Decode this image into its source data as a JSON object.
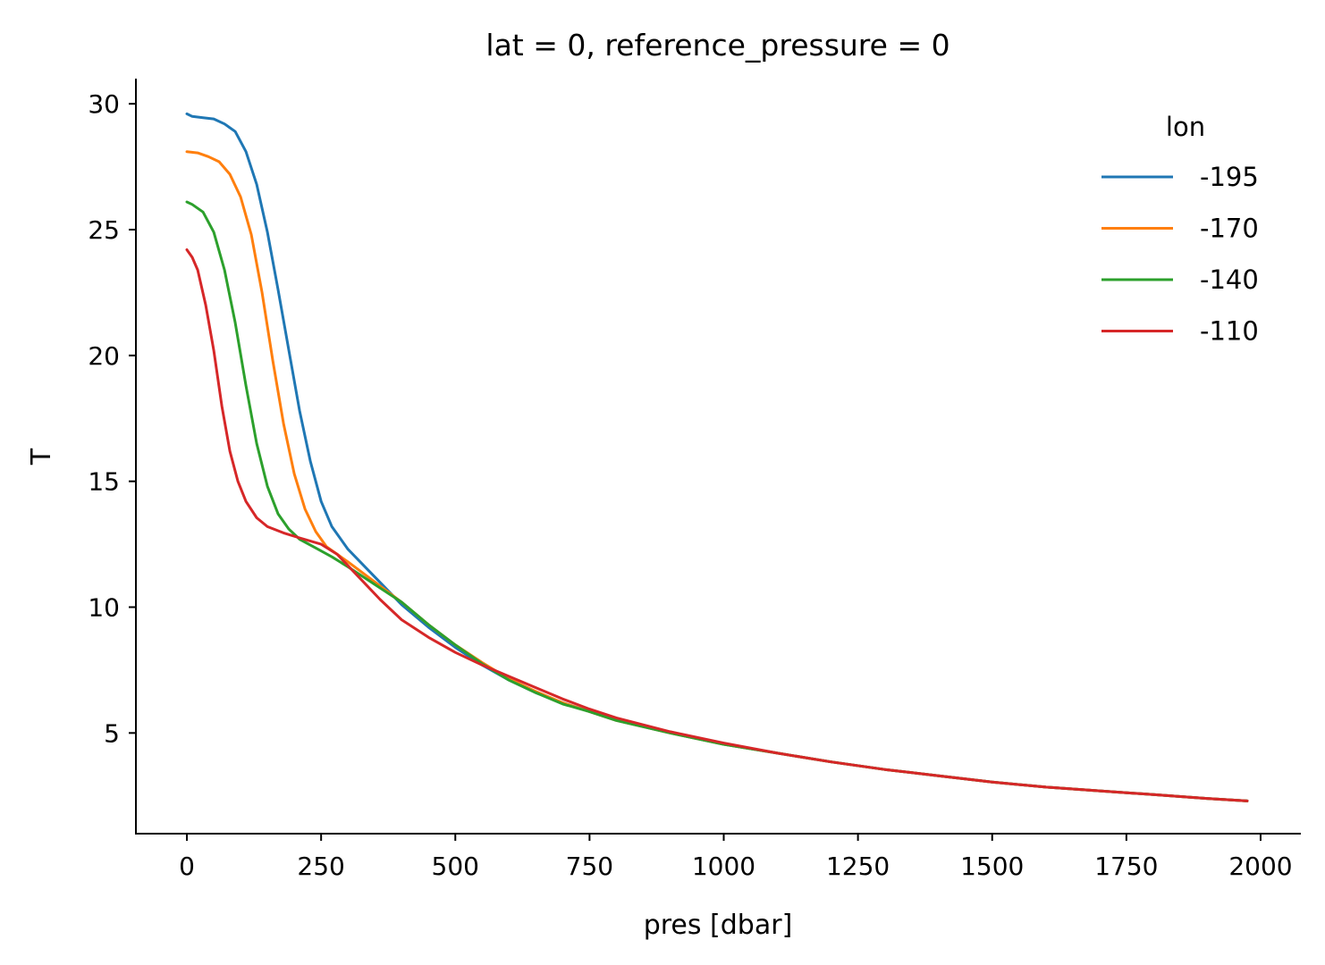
{
  "chart_data": {
    "type": "line",
    "title": "lat = 0, reference_pressure = 0",
    "xlabel": "pres [dbar]",
    "ylabel": "T",
    "xlim": [
      -95,
      2075
    ],
    "ylim": [
      1.0,
      31.0
    ],
    "xticks": [
      0,
      250,
      500,
      750,
      1000,
      1250,
      1500,
      1750,
      2000
    ],
    "yticks": [
      5,
      10,
      15,
      20,
      25,
      30
    ],
    "grid": false,
    "legend": {
      "title": "lon",
      "placement": "top-right"
    },
    "series": [
      {
        "name": "-195",
        "color": "#1f77b4",
        "points": [
          [
            0,
            29.6
          ],
          [
            10,
            29.5
          ],
          [
            30,
            29.45
          ],
          [
            50,
            29.4
          ],
          [
            70,
            29.2
          ],
          [
            90,
            28.9
          ],
          [
            110,
            28.1
          ],
          [
            130,
            26.8
          ],
          [
            150,
            24.9
          ],
          [
            170,
            22.6
          ],
          [
            190,
            20.2
          ],
          [
            210,
            17.8
          ],
          [
            230,
            15.8
          ],
          [
            250,
            14.2
          ],
          [
            270,
            13.2
          ],
          [
            300,
            12.3
          ],
          [
            350,
            11.2
          ],
          [
            400,
            10.1
          ],
          [
            450,
            9.2
          ],
          [
            500,
            8.4
          ],
          [
            550,
            7.7
          ],
          [
            600,
            7.1
          ],
          [
            650,
            6.6
          ],
          [
            700,
            6.2
          ],
          [
            750,
            5.85
          ],
          [
            800,
            5.5
          ],
          [
            900,
            5.0
          ],
          [
            1000,
            4.55
          ],
          [
            1100,
            4.2
          ],
          [
            1200,
            3.85
          ],
          [
            1300,
            3.55
          ],
          [
            1400,
            3.3
          ],
          [
            1500,
            3.05
          ],
          [
            1600,
            2.85
          ],
          [
            1700,
            2.7
          ],
          [
            1800,
            2.55
          ],
          [
            1900,
            2.4
          ],
          [
            1975,
            2.3
          ]
        ]
      },
      {
        "name": "-170",
        "color": "#ff7f0e",
        "points": [
          [
            0,
            28.1
          ],
          [
            20,
            28.05
          ],
          [
            40,
            27.9
          ],
          [
            60,
            27.7
          ],
          [
            80,
            27.2
          ],
          [
            100,
            26.3
          ],
          [
            120,
            24.8
          ],
          [
            140,
            22.5
          ],
          [
            160,
            19.8
          ],
          [
            180,
            17.3
          ],
          [
            200,
            15.3
          ],
          [
            220,
            13.9
          ],
          [
            240,
            13.0
          ],
          [
            260,
            12.4
          ],
          [
            300,
            11.8
          ],
          [
            350,
            11.0
          ],
          [
            400,
            10.2
          ],
          [
            450,
            9.3
          ],
          [
            500,
            8.5
          ],
          [
            550,
            7.8
          ],
          [
            600,
            7.15
          ],
          [
            650,
            6.65
          ],
          [
            700,
            6.2
          ],
          [
            750,
            5.85
          ],
          [
            800,
            5.5
          ],
          [
            900,
            5.0
          ],
          [
            1000,
            4.55
          ],
          [
            1100,
            4.2
          ],
          [
            1200,
            3.85
          ],
          [
            1300,
            3.55
          ],
          [
            1400,
            3.3
          ],
          [
            1500,
            3.05
          ],
          [
            1600,
            2.85
          ],
          [
            1700,
            2.7
          ],
          [
            1800,
            2.55
          ],
          [
            1900,
            2.4
          ],
          [
            1975,
            2.3
          ]
        ]
      },
      {
        "name": "-140",
        "color": "#2ca02c",
        "points": [
          [
            0,
            26.1
          ],
          [
            10,
            26.0
          ],
          [
            30,
            25.7
          ],
          [
            50,
            24.9
          ],
          [
            70,
            23.4
          ],
          [
            90,
            21.3
          ],
          [
            110,
            18.8
          ],
          [
            130,
            16.5
          ],
          [
            150,
            14.8
          ],
          [
            170,
            13.7
          ],
          [
            190,
            13.1
          ],
          [
            210,
            12.7
          ],
          [
            240,
            12.35
          ],
          [
            270,
            12.0
          ],
          [
            300,
            11.6
          ],
          [
            350,
            10.9
          ],
          [
            400,
            10.2
          ],
          [
            450,
            9.3
          ],
          [
            500,
            8.5
          ],
          [
            550,
            7.75
          ],
          [
            600,
            7.1
          ],
          [
            650,
            6.6
          ],
          [
            700,
            6.15
          ],
          [
            750,
            5.85
          ],
          [
            800,
            5.5
          ],
          [
            900,
            5.0
          ],
          [
            1000,
            4.55
          ],
          [
            1100,
            4.2
          ],
          [
            1200,
            3.85
          ],
          [
            1300,
            3.55
          ],
          [
            1400,
            3.3
          ],
          [
            1500,
            3.05
          ],
          [
            1600,
            2.85
          ],
          [
            1700,
            2.7
          ],
          [
            1800,
            2.55
          ],
          [
            1900,
            2.4
          ],
          [
            1975,
            2.3
          ]
        ]
      },
      {
        "name": "-110",
        "color": "#d62728",
        "points": [
          [
            0,
            24.2
          ],
          [
            10,
            23.9
          ],
          [
            20,
            23.4
          ],
          [
            35,
            22.0
          ],
          [
            50,
            20.2
          ],
          [
            65,
            18.0
          ],
          [
            80,
            16.2
          ],
          [
            95,
            15.0
          ],
          [
            110,
            14.2
          ],
          [
            130,
            13.55
          ],
          [
            150,
            13.2
          ],
          [
            180,
            12.95
          ],
          [
            210,
            12.75
          ],
          [
            250,
            12.5
          ],
          [
            280,
            12.1
          ],
          [
            320,
            11.2
          ],
          [
            360,
            10.3
          ],
          [
            400,
            9.5
          ],
          [
            450,
            8.8
          ],
          [
            500,
            8.2
          ],
          [
            550,
            7.7
          ],
          [
            600,
            7.25
          ],
          [
            650,
            6.8
          ],
          [
            700,
            6.35
          ],
          [
            750,
            5.95
          ],
          [
            800,
            5.6
          ],
          [
            900,
            5.05
          ],
          [
            1000,
            4.6
          ],
          [
            1100,
            4.2
          ],
          [
            1200,
            3.85
          ],
          [
            1300,
            3.55
          ],
          [
            1400,
            3.3
          ],
          [
            1500,
            3.05
          ],
          [
            1600,
            2.85
          ],
          [
            1700,
            2.7
          ],
          [
            1800,
            2.55
          ],
          [
            1900,
            2.4
          ],
          [
            1975,
            2.3
          ]
        ]
      }
    ]
  }
}
